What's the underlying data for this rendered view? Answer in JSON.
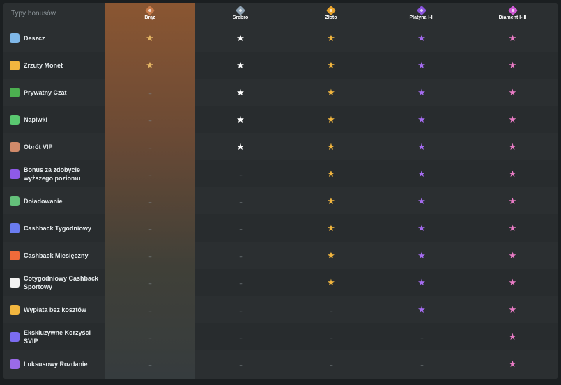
{
  "header": {
    "label": "Typy bonusów"
  },
  "tiers": [
    {
      "name": "Brąz",
      "color": "#c77b4a"
    },
    {
      "name": "Srebro",
      "color": "#8fa3b4"
    },
    {
      "name": "Złoto",
      "color": "#e8a32c"
    },
    {
      "name": "Platyna I-II",
      "color": "#8b54e0"
    },
    {
      "name": "Diament I-III",
      "color": "#d05ad6"
    }
  ],
  "star_colors": [
    "#e2b463",
    "#ffffff",
    "#f2b63f",
    "#a56cf0",
    "#e97bc5"
  ],
  "dash_text": "--",
  "rows": [
    {
      "label": "Deszcz",
      "icon": "cloud-rain-icon",
      "icon_color": "#7fb8e8",
      "cells": [
        1,
        1,
        1,
        1,
        1
      ]
    },
    {
      "label": "Zrzuty Monet",
      "icon": "coin-drop-icon",
      "icon_color": "#f2b63f",
      "cells": [
        1,
        1,
        1,
        1,
        1
      ]
    },
    {
      "label": "Prywatny Czat",
      "icon": "chat-money-icon",
      "icon_color": "#4caf50",
      "cells": [
        0,
        1,
        1,
        1,
        1
      ]
    },
    {
      "label": "Napiwki",
      "icon": "tip-money-icon",
      "icon_color": "#5ac870",
      "cells": [
        0,
        1,
        1,
        1,
        1
      ]
    },
    {
      "label": "Obrót VIP",
      "icon": "vip-spin-icon",
      "icon_color": "#d08a6a",
      "cells": [
        0,
        1,
        1,
        1,
        1
      ]
    },
    {
      "label": "Bonus za zdobycie wyższego poziomu",
      "icon": "level-up-icon",
      "icon_color": "#8e5ae8",
      "cells": [
        0,
        0,
        1,
        1,
        1
      ]
    },
    {
      "label": "Doładowanie",
      "icon": "reload-icon",
      "icon_color": "#64c07a",
      "cells": [
        0,
        0,
        1,
        1,
        1
      ]
    },
    {
      "label": "Cashback Tygodniowy",
      "icon": "weekly-cashback-icon",
      "icon_color": "#6a7cf0",
      "cells": [
        0,
        0,
        1,
        1,
        1
      ]
    },
    {
      "label": "Cashback Miesięczny",
      "icon": "monthly-cashback-icon",
      "icon_color": "#ef6a3a",
      "cells": [
        0,
        0,
        1,
        1,
        1
      ]
    },
    {
      "label": "Cotygodniowy Cashback Sportowy",
      "icon": "soccer-ball-icon",
      "icon_color": "#f2f2f2",
      "cells": [
        0,
        0,
        1,
        1,
        1
      ]
    },
    {
      "label": "Wypłata bez kosztów",
      "icon": "free-withdrawal-icon",
      "icon_color": "#f2b63f",
      "cells": [
        0,
        0,
        0,
        1,
        1
      ]
    },
    {
      "label": "Ekskluzywne Korzyści SVIP",
      "icon": "svip-perks-icon",
      "icon_color": "#7b6cf0",
      "cells": [
        0,
        0,
        0,
        0,
        1
      ]
    },
    {
      "label": "Luksusowy Rozdanie",
      "icon": "luxury-giveaway-icon",
      "icon_color": "#9a6ae8",
      "cells": [
        0,
        0,
        0,
        0,
        1
      ]
    }
  ]
}
